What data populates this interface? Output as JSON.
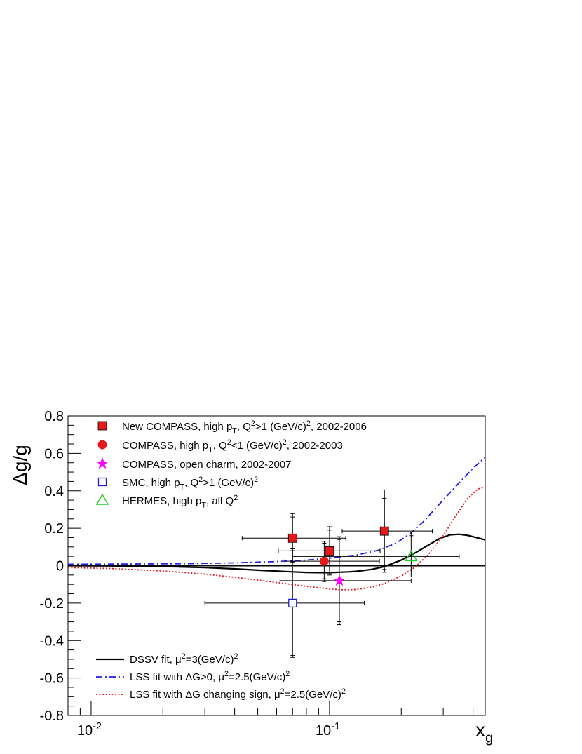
{
  "chart_data": {
    "type": "scatter",
    "x_scale": "log",
    "xlim": [
      0.008,
      0.45
    ],
    "ylim": [
      -0.8,
      0.8
    ],
    "xlabel": {
      "main": "x",
      "sub": "g"
    },
    "ylabel": "Δg/g",
    "x_ticks": [
      {
        "value": 0.01,
        "base": "10",
        "exp": "-2"
      },
      {
        "value": 0.1,
        "base": "10",
        "exp": "-1"
      }
    ],
    "y_ticks": [
      {
        "value": 0.8,
        "label": "0.8"
      },
      {
        "value": 0.6,
        "label": "0.6"
      },
      {
        "value": 0.4,
        "label": "0.4"
      },
      {
        "value": 0.2,
        "label": "0.2"
      },
      {
        "value": 0,
        "label": "0"
      },
      {
        "value": -0.2,
        "label": "-0.2"
      },
      {
        "value": -0.4,
        "label": "-0.4"
      },
      {
        "value": -0.6,
        "label": "-0.6"
      },
      {
        "value": -0.8,
        "label": "-0.8"
      }
    ],
    "grid": false,
    "legend_placement": "top-left",
    "data_series": [
      {
        "legend": [
          "New COMPASS, high p",
          {
            "sub": "T"
          },
          ", Q",
          {
            "sup": "2"
          },
          ">1 (GeV/c)",
          {
            "sup": "2"
          },
          ", 2002-2006"
        ],
        "marker": "filled-square",
        "color": "#e31a1c",
        "points": [
          {
            "x": 0.07,
            "y": 0.147,
            "x_lo": 0.043,
            "x_hi": 0.117,
            "y_lo": 0.02,
            "y_hi": 0.278,
            "y_lo_sys": 0.02,
            "y_hi_sys": 0.26
          },
          {
            "x": 0.1,
            "y": 0.079,
            "x_lo": 0.061,
            "x_hi": 0.163,
            "y_lo": -0.05,
            "y_hi": 0.208,
            "y_lo_sys": -0.04,
            "y_hi_sys": 0.19
          },
          {
            "x": 0.17,
            "y": 0.185,
            "x_lo": 0.113,
            "x_hi": 0.27,
            "y_lo": -0.035,
            "y_hi": 0.405,
            "y_lo_sys": -0.02,
            "y_hi_sys": 0.36
          }
        ]
      },
      {
        "legend": [
          "COMPASS, high p",
          {
            "sub": "T"
          },
          ", Q",
          {
            "sup": "2"
          },
          "<1 (GeV/c)",
          {
            "sup": "2"
          },
          ", 2002-2003"
        ],
        "marker": "filled-circle",
        "color": "#e31a1c",
        "points": [
          {
            "x": 0.095,
            "y": 0.024,
            "x_lo": 0.065,
            "x_hi": 0.162,
            "y_lo": -0.085,
            "y_hi": 0.13,
            "y_lo_sys": -0.07,
            "y_hi_sys": 0.12
          }
        ]
      },
      {
        "legend": [
          "COMPASS, open charm, 2002-2007"
        ],
        "marker": "filled-star",
        "color": "#ff00ff",
        "points": [
          {
            "x": 0.11,
            "y": -0.08,
            "x_lo": 0.062,
            "x_hi": 0.22,
            "y_lo": -0.315,
            "y_hi": 0.155,
            "y_lo_sys": -0.3,
            "y_hi_sys": 0.14
          }
        ]
      },
      {
        "legend": [
          "SMC, high p",
          {
            "sub": "T"
          },
          ", Q",
          {
            "sup": "2"
          },
          ">1 (GeV/c)",
          {
            "sup": "2"
          }
        ],
        "marker": "open-square",
        "color": "#1f1fd0",
        "points": [
          {
            "x": 0.07,
            "y": -0.2,
            "x_lo": 0.03,
            "x_hi": 0.14,
            "y_lo": -0.49,
            "y_hi": 0.09,
            "y_lo_sys": -0.48,
            "y_hi_sys": 0.08
          }
        ]
      },
      {
        "legend": [
          "HERMES, high p",
          {
            "sub": "T"
          },
          ", all Q",
          {
            "sup": "2"
          }
        ],
        "marker": "open-triangle",
        "color": "#22cc22",
        "points": [
          {
            "x": 0.22,
            "y": 0.049,
            "x_lo": 0.07,
            "x_hi": 0.35,
            "y_lo": -0.06,
            "y_hi": 0.18,
            "y_lo_sys": -0.045,
            "y_hi_sys": 0.16
          }
        ]
      }
    ],
    "curve_series": [
      {
        "legend": [
          "DSSV fit, μ",
          {
            "sup": "2"
          },
          "=3(GeV/c)",
          {
            "sup": "2"
          }
        ],
        "style": "solid",
        "color": "#000000",
        "points": [
          [
            0.008,
            0.0
          ],
          [
            0.012,
            -0.001
          ],
          [
            0.02,
            -0.004
          ],
          [
            0.03,
            -0.01
          ],
          [
            0.04,
            -0.017
          ],
          [
            0.05,
            -0.024
          ],
          [
            0.06,
            -0.029
          ],
          [
            0.07,
            -0.033
          ],
          [
            0.08,
            -0.036
          ],
          [
            0.09,
            -0.037
          ],
          [
            0.1,
            -0.037
          ],
          [
            0.11,
            -0.035
          ],
          [
            0.12,
            -0.033
          ],
          [
            0.13,
            -0.03
          ],
          [
            0.14,
            -0.025
          ],
          [
            0.15,
            -0.02
          ],
          [
            0.17,
            -0.005
          ],
          [
            0.2,
            0.03
          ],
          [
            0.23,
            0.07
          ],
          [
            0.26,
            0.11
          ],
          [
            0.29,
            0.145
          ],
          [
            0.32,
            0.165
          ],
          [
            0.35,
            0.168
          ],
          [
            0.38,
            0.162
          ],
          [
            0.42,
            0.148
          ],
          [
            0.45,
            0.138
          ]
        ]
      },
      {
        "legend": [
          "LSS fit with ΔG>0, μ",
          {
            "sup": "2"
          },
          "=2.5(GeV/c)",
          {
            "sup": "2"
          }
        ],
        "style": "dashdot",
        "color": "#1f1fe6",
        "points": [
          [
            0.008,
            0.008
          ],
          [
            0.015,
            0.009
          ],
          [
            0.025,
            0.011
          ],
          [
            0.04,
            0.015
          ],
          [
            0.06,
            0.022
          ],
          [
            0.08,
            0.03
          ],
          [
            0.1,
            0.04
          ],
          [
            0.13,
            0.057
          ],
          [
            0.16,
            0.082
          ],
          [
            0.19,
            0.12
          ],
          [
            0.22,
            0.175
          ],
          [
            0.25,
            0.24
          ],
          [
            0.28,
            0.31
          ],
          [
            0.32,
            0.39
          ],
          [
            0.36,
            0.46
          ],
          [
            0.4,
            0.52
          ],
          [
            0.45,
            0.58
          ]
        ]
      },
      {
        "legend": [
          "LSS fit with ΔG changing sign, μ",
          {
            "sup": "2"
          },
          "=2.5(GeV/c)",
          {
            "sup": "2"
          }
        ],
        "style": "dotted",
        "color": "#e31a1c",
        "points": [
          [
            0.008,
            -0.01
          ],
          [
            0.012,
            -0.015
          ],
          [
            0.02,
            -0.028
          ],
          [
            0.03,
            -0.045
          ],
          [
            0.04,
            -0.062
          ],
          [
            0.05,
            -0.077
          ],
          [
            0.06,
            -0.09
          ],
          [
            0.07,
            -0.101
          ],
          [
            0.08,
            -0.11
          ],
          [
            0.09,
            -0.118
          ],
          [
            0.1,
            -0.124
          ],
          [
            0.11,
            -0.128
          ],
          [
            0.12,
            -0.129
          ],
          [
            0.13,
            -0.127
          ],
          [
            0.15,
            -0.115
          ],
          [
            0.17,
            -0.095
          ],
          [
            0.2,
            -0.055
          ],
          [
            0.23,
            -0.005
          ],
          [
            0.26,
            0.06
          ],
          [
            0.3,
            0.16
          ],
          [
            0.34,
            0.27
          ],
          [
            0.38,
            0.36
          ],
          [
            0.42,
            0.41
          ],
          [
            0.45,
            0.42
          ]
        ]
      }
    ]
  }
}
